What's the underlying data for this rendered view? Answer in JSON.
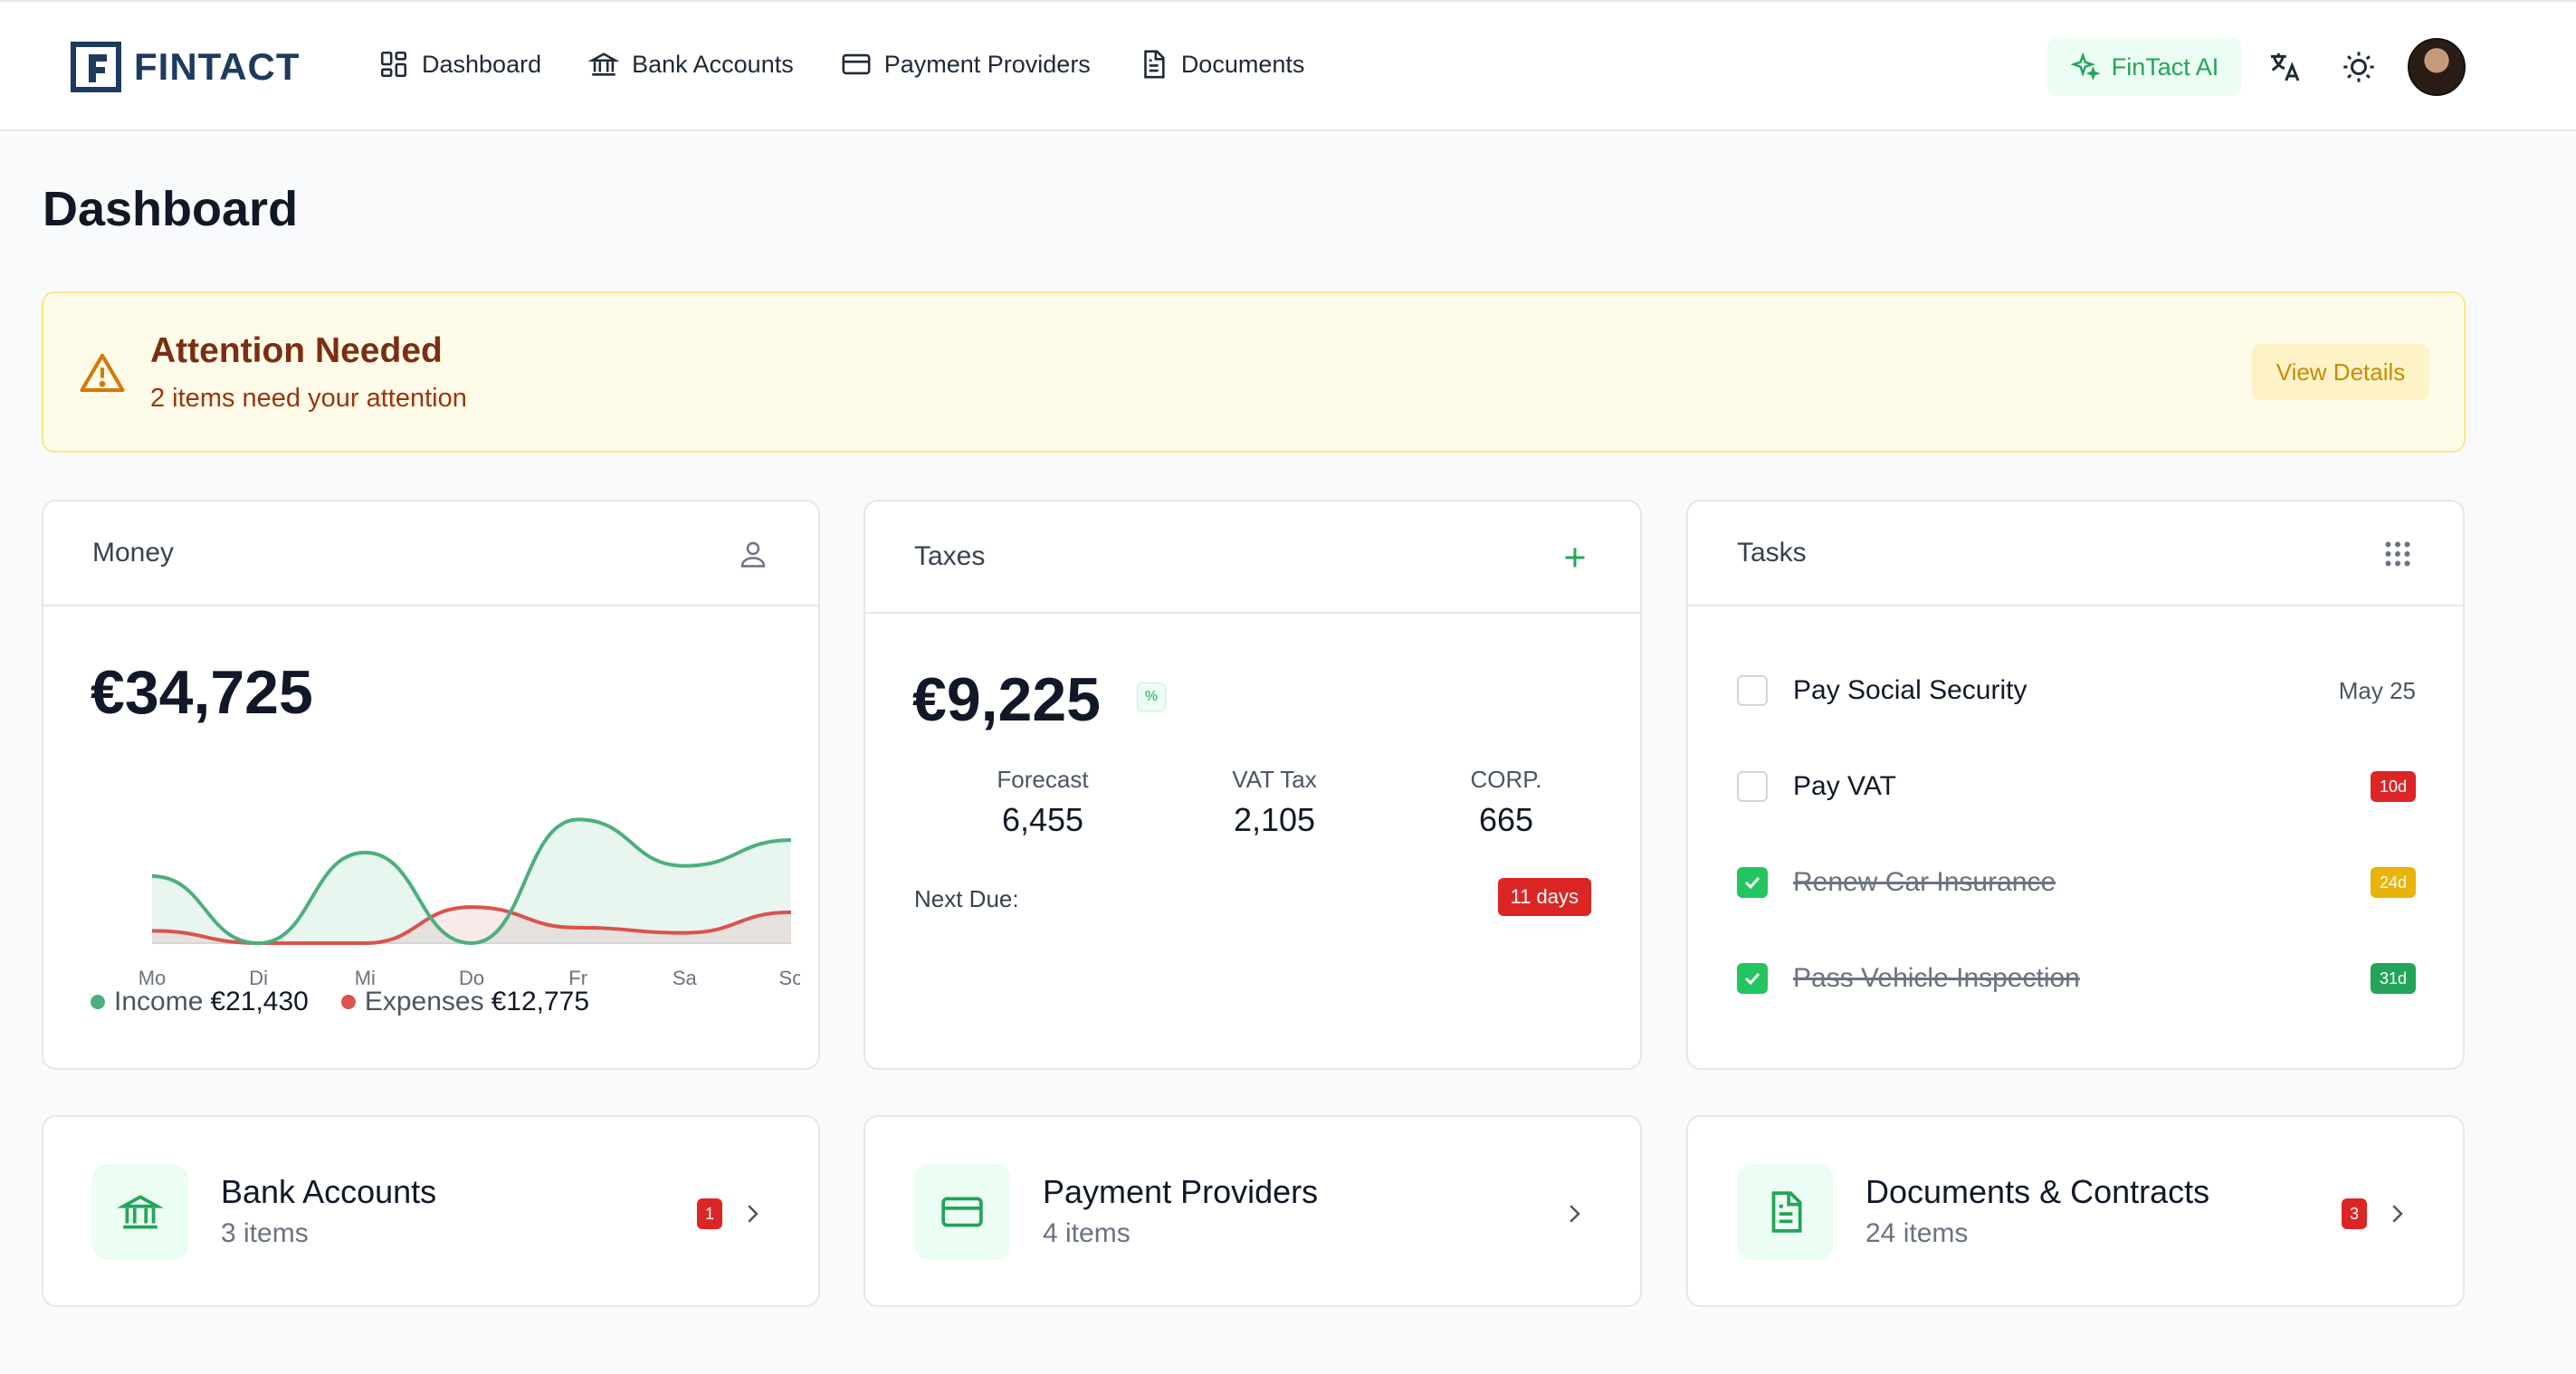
{
  "app": {
    "logo_text": "FINTACT"
  },
  "nav": [
    {
      "label": "Dashboard",
      "icon": "dashboard-grid-icon"
    },
    {
      "label": "Bank Accounts",
      "icon": "bank-icon"
    },
    {
      "label": "Payment Providers",
      "icon": "credit-card-icon"
    },
    {
      "label": "Documents",
      "icon": "document-icon"
    }
  ],
  "header": {
    "ai_label": "FinTact AI",
    "icons": [
      "translate-icon",
      "sun-icon",
      "avatar"
    ]
  },
  "page": {
    "title": "Dashboard"
  },
  "alert": {
    "title": "Attention Needed",
    "subtitle": "2 items need your attention",
    "button": "View Details"
  },
  "money": {
    "title": "Money",
    "amount": "€34,725",
    "income_label": "Income",
    "income_value": "€21,430",
    "expenses_label": "Expenses",
    "expenses_value": "€12,775",
    "colors": {
      "income": "#4caf7d",
      "expenses": "#d9534f"
    }
  },
  "chart_data": {
    "type": "area",
    "categories": [
      "Mo",
      "Di",
      "Mi",
      "Do",
      "Fr",
      "Sa",
      "So"
    ],
    "series": [
      {
        "name": "Income",
        "values": [
          65,
          0,
          88,
          0,
          120,
          75,
          100
        ]
      },
      {
        "name": "Expenses",
        "values": [
          12,
          0,
          0,
          35,
          15,
          10,
          30
        ]
      }
    ],
    "ylim": [
      0,
      130
    ],
    "grid": false
  },
  "taxes": {
    "title": "Taxes",
    "amount": "€9,225",
    "badge": "%",
    "columns": [
      {
        "label": "Forecast",
        "value": "6,455"
      },
      {
        "label": "VAT Tax",
        "value": "2,105"
      },
      {
        "label": "CORP.",
        "value": "665"
      }
    ],
    "next_due_label": "Next Due:",
    "next_due_badge": "11 days"
  },
  "tasks": {
    "title": "Tasks",
    "items": [
      {
        "label": "Pay Social Security",
        "done": false,
        "meta": "May 25"
      },
      {
        "label": "Pay VAT",
        "done": false,
        "tag": "10d",
        "tag_color": "#dc2626"
      },
      {
        "label": "Renew Car Insurance",
        "done": true,
        "tag": "24d",
        "tag_color": "#eab308"
      },
      {
        "label": "Pass Vehicle Inspection",
        "done": true,
        "tag": "31d",
        "tag_color": "#22a55a"
      }
    ]
  },
  "tiles": [
    {
      "title": "Bank Accounts",
      "subtitle": "3 items",
      "count": "1",
      "icon": "bank-icon"
    },
    {
      "title": "Payment Providers",
      "subtitle": "4 items",
      "icon": "credit-card-icon"
    },
    {
      "title": "Documents & Contracts",
      "subtitle": "24 items",
      "count": "3",
      "icon": "document-icon"
    }
  ]
}
